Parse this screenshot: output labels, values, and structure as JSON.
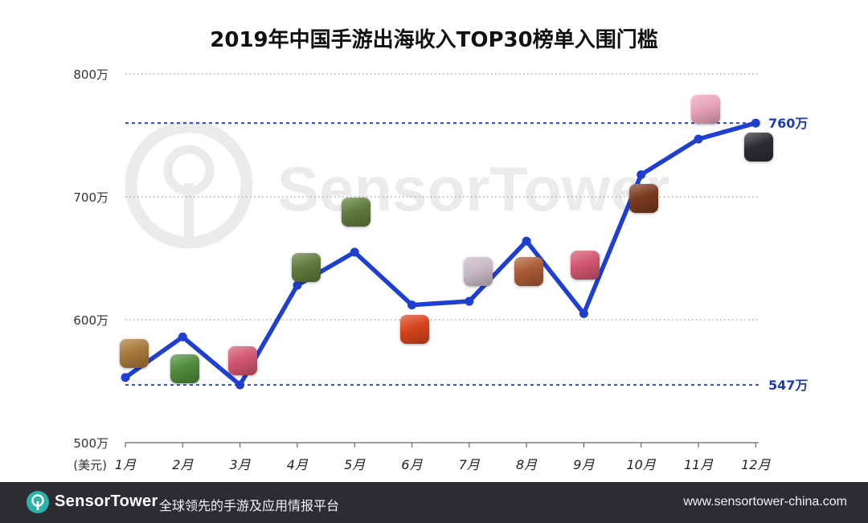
{
  "chart_data": {
    "type": "line",
    "title": "2019年中国手游出海收入TOP30榜单入围门槛",
    "x_axis": {
      "unit_label": "(美元)",
      "categories": [
        "1月",
        "2月",
        "3月",
        "4月",
        "5月",
        "6月",
        "7月",
        "8月",
        "9月",
        "10月",
        "11月",
        "12月"
      ]
    },
    "y_axis": {
      "ylim": [
        500,
        800
      ],
      "ticks": [
        {
          "value": 500,
          "label": "500万"
        },
        {
          "value": 600,
          "label": "600万"
        },
        {
          "value": 700,
          "label": "700万"
        },
        {
          "value": 800,
          "label": "800万"
        }
      ],
      "grid": "dotted"
    },
    "series": [
      {
        "values": [
          553,
          586,
          547,
          628,
          655,
          612,
          615,
          664,
          605,
          718,
          747,
          760
        ],
        "color": "#1f3fd0"
      }
    ],
    "reference_lines": [
      {
        "value": 760,
        "label": "760万",
        "color": "#1a3cb5"
      },
      {
        "value": 547,
        "label": "547万",
        "color": "#1a3cb5"
      }
    ]
  },
  "watermark": {
    "text": "SensorTower"
  },
  "app_icons": [
    {
      "month": "1月",
      "name": "strategy-game-icon",
      "color": "#a7783b"
    },
    {
      "month": "2月",
      "name": "army-game-icon",
      "color": "#4f8a3a"
    },
    {
      "month": "3月",
      "name": "chapters-game-icon",
      "color": "#d1566e"
    },
    {
      "month": "4月",
      "name": "castle-clash-icon",
      "color": "#5f7a3c"
    },
    {
      "month": "5月",
      "name": "castle-clash-icon",
      "color": "#5f7a3c"
    },
    {
      "month": "6月",
      "name": "mu-origin-icon",
      "color": "#d7431c"
    },
    {
      "month": "7月",
      "name": "anime-girl-icon",
      "color": "#c9b9c4"
    },
    {
      "month": "8月",
      "name": "soldier-game-icon",
      "color": "#a95a33"
    },
    {
      "month": "9月",
      "name": "chapters-game-icon",
      "color": "#d1566e"
    },
    {
      "month": "10月",
      "name": "war-game-icon",
      "color": "#7a3a1e"
    },
    {
      "month": "11月",
      "name": "anime-pink-icon",
      "color": "#e8a2b8"
    },
    {
      "month": "12月",
      "name": "character-portrait-icon",
      "color": "#2c2c30"
    }
  ],
  "footer": {
    "brand_part1": "Sensor",
    "brand_part2": "Tower",
    "tagline": "全球领先的手游及应用情报平台",
    "url": "www.sensortower-china.com"
  }
}
